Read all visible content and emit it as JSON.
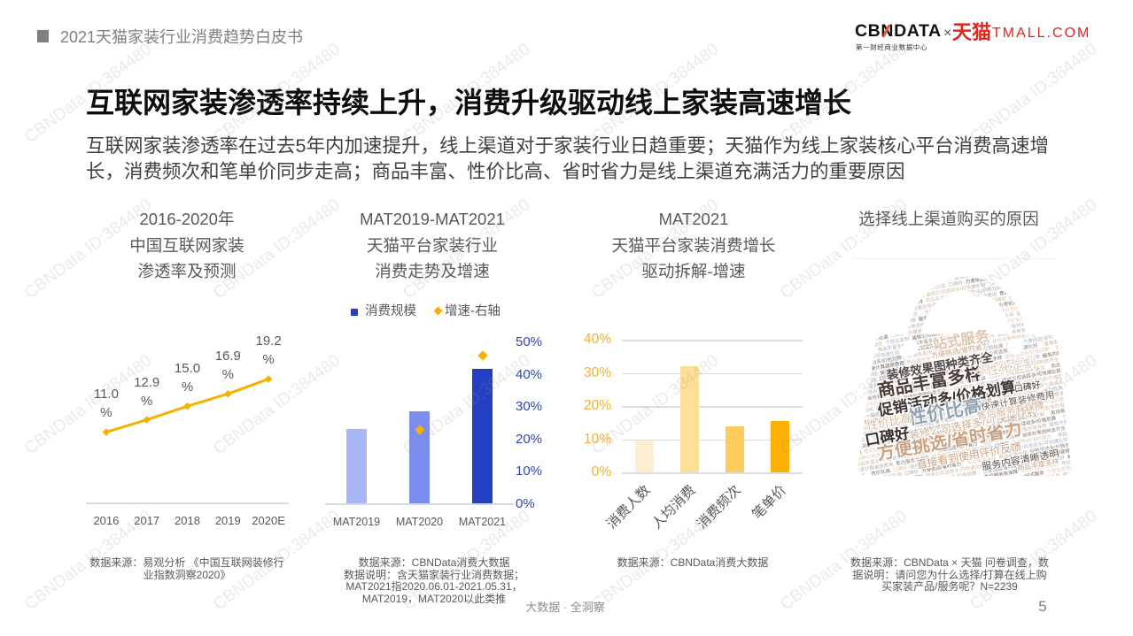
{
  "header": {
    "section_title": "2021天猫家装行业消费趋势白皮书"
  },
  "logo": {
    "cbn_prefix": "CB",
    "cbn_n": "N",
    "cbn_suffix": "DATA",
    "cbn_tagline": "第一财经商业数据中心",
    "times": "×",
    "tmall_cn": "天猫",
    "tmall_en": "TMALL.COM"
  },
  "headline": "互联网家装渗透率持续上升，消费升级驱动线上家装高速增长",
  "summary": [
    "互联网家装渗透率在过去5年内加速提升，线上渠道对于家装行业日趋重要；天猫作为线上家装核心平台消费高速增",
    "长，消费频次和笔单价同步走高；商品丰富、性价比高、省时省力是线上渠道充满活力的重要原因"
  ],
  "footer": {
    "tagline": "大数据 · 全洞察",
    "page_number": "5"
  },
  "watermark": {
    "text": "CBNData ID:384480"
  },
  "colors": {
    "brand_red": "#e0261c",
    "accent_orange": "#f5b000",
    "axis_blue": "#2e44c4",
    "text_gray": "#595959"
  },
  "chart_data": [
    {
      "type": "line",
      "title": [
        "2016-2020年",
        "中国互联网家装",
        "渗透率及预测"
      ],
      "categories": [
        "2016",
        "2017",
        "2018",
        "2019",
        "2020E"
      ],
      "values": [
        11.0,
        12.9,
        15.0,
        16.9,
        19.2
      ],
      "data_labels": [
        "11.0",
        "12.9",
        "15.0",
        "16.9",
        "19.2"
      ],
      "label_suffix": "%",
      "xlabel": "",
      "ylabel": "",
      "ylim": [
        0,
        25
      ],
      "y_axis_visible": false,
      "grid": false,
      "legend": null,
      "color": "#f5b000",
      "source": [
        "数据来源：易观分析 《中国互联网装修行",
        "业指数洞察2020》"
      ]
    },
    {
      "type": "bar",
      "title": [
        "MAT2019-MAT2021",
        "天猫平台家装行业",
        "消费走势及增速"
      ],
      "categories": [
        "MAT2019",
        "MAT2020",
        "MAT2021"
      ],
      "series": [
        {
          "name": "消费规模",
          "type": "bar",
          "axis": "left",
          "values": [
            100,
            123,
            180
          ],
          "colors": [
            "#a9b6f7",
            "#7b8eef",
            "#2340c4"
          ],
          "legend_color": "#2340c4"
        },
        {
          "name": "增速-右轴",
          "type": "scatter",
          "marker": "diamond",
          "axis": "right",
          "values": [
            null,
            23,
            46
          ],
          "color": "#f5b000"
        }
      ],
      "ylim_left": [
        0,
        215
      ],
      "left_axis_visible": false,
      "ylim_right": [
        0,
        50
      ],
      "right_ticks": [
        "0%",
        "10%",
        "20%",
        "30%",
        "40%",
        "50%"
      ],
      "legend_position": "top",
      "grid": false,
      "source": [
        "数据来源：CBNData消费大数据",
        "数据说明：含天猫家装行业消费数据；",
        "MAT2021指2020.06.01-2021.05.31，",
        "MAT2019，MAT2020以此类推"
      ]
    },
    {
      "type": "bar",
      "title": [
        "MAT2021",
        "天猫平台家装消费增长",
        "驱动拆解-增速"
      ],
      "categories": [
        "消费人数",
        "人均消费",
        "消费频次",
        "笔单价"
      ],
      "values": [
        9.6,
        32.0,
        13.8,
        15.5
      ],
      "colors": [
        "#fdefcf",
        "#fddf98",
        "#fdcc5f",
        "#fcb000"
      ],
      "ylim": [
        0,
        40
      ],
      "yticks": [
        "0%",
        "10%",
        "20%",
        "30%",
        "40%"
      ],
      "grid": true,
      "xlabel_rotation": -45,
      "source": [
        "数据来源：CBNData消费大数据"
      ]
    },
    {
      "type": "wordcloud",
      "title": [
        "选择线上渠道购买的原因"
      ],
      "shape": "handbag",
      "words": [
        {
          "text": "商品丰富多样",
          "x": 92,
          "y": 133,
          "size": 20,
          "color": "#4a3c33",
          "bold": true
        },
        {
          "text": "促销活动多/价格划算",
          "x": 111,
          "y": 152,
          "size": 17,
          "color": "#3e3430",
          "bold": true
        },
        {
          "text": "方便挑选/省时省力",
          "x": 114,
          "y": 200,
          "size": 20,
          "color": "#c9a283",
          "bold": true
        },
        {
          "text": "性价比高",
          "x": 109,
          "y": 167,
          "size": 21,
          "color": "#92a2b0",
          "bold": true
        },
        {
          "text": "口碑好",
          "x": 44,
          "y": 195,
          "size": 17,
          "color": "#3a302b",
          "bold": true
        },
        {
          "text": "装修效果图种类齐全",
          "x": 103,
          "y": 115,
          "size": 13.5,
          "color": "#4f4a46",
          "bold": true
        },
        {
          "text": "一站式服务",
          "x": 119,
          "y": 87,
          "size": 16,
          "color": "#dcc5ab",
          "bold": true
        },
        {
          "text": "个性化定制",
          "x": 177,
          "y": 117,
          "size": 14,
          "color": "#dfcab2",
          "bold": false
        },
        {
          "text": "装修公司选择多/可快速比较",
          "x": 141,
          "y": 180,
          "size": 12,
          "color": "#cbad92",
          "bold": false
        },
        {
          "text": "直接看到使用评价反馈",
          "x": 136,
          "y": 216,
          "size": 12,
          "color": "#c9a283",
          "bold": false
        },
        {
          "text": "快速计算装修费用",
          "x": 191,
          "y": 154,
          "size": 10.5,
          "color": "#6b5d53",
          "bold": false
        },
        {
          "text": "售后服务有保障",
          "x": 183,
          "y": 165,
          "size": 11,
          "color": "#d4b497",
          "bold": false
        },
        {
          "text": "服务内容清晰透明",
          "x": 194,
          "y": 221,
          "size": 11,
          "color": "#5a4e47",
          "bold": false
        },
        {
          "text": "性价比高",
          "x": 46,
          "y": 178,
          "size": 13,
          "color": "#d8b99d",
          "bold": false
        },
        {
          "text": "口碑好",
          "x": 202,
          "y": 138,
          "size": 10,
          "color": "#3e3430",
          "bold": false
        },
        {
          "text": "方便挑选/省时省力",
          "x": 126,
          "y": 97,
          "size": 8,
          "color": "#c9a283",
          "bold": false
        },
        {
          "text": "商品丰富多样",
          "x": 214,
          "y": 226,
          "size": 8,
          "color": "#c9a283",
          "bold": false
        }
      ],
      "palette": [
        "#dcc8b3",
        "#bcb0a6",
        "#8f8278",
        "#d0b9a1",
        "#aab4be",
        "#74685f"
      ],
      "source": [
        "数据来源：CBNData × 天猫 问卷调查，数",
        "据说明：请问您为什么选择/打算在线上购",
        "买家装产品/服务呢？N=2239"
      ]
    }
  ]
}
